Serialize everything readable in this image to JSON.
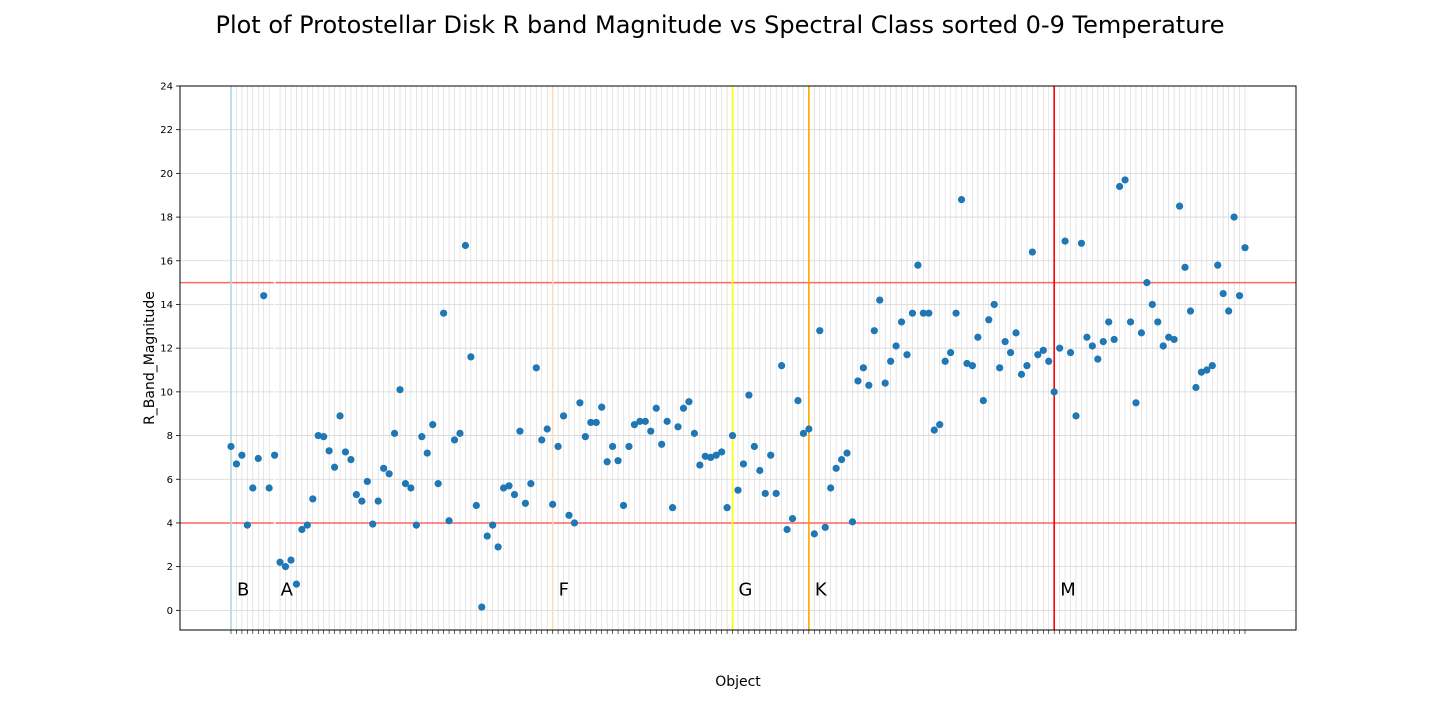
{
  "chart_data": {
    "type": "scatter",
    "title": "Plot of Protostellar Disk R band Magnitude vs Spectral Class sorted 0-9 Temperature",
    "xlabel": "Object",
    "ylabel": "R_Band_Magnitude",
    "ylim": [
      -0.9,
      24
    ],
    "yticks": [
      0,
      2,
      4,
      6,
      8,
      10,
      12,
      14,
      16,
      18,
      20,
      22,
      24
    ],
    "grid": true,
    "point_color": "#1f77b4",
    "reference_lines": [
      {
        "axis": "y",
        "value": 15,
        "color": "#ff6666"
      },
      {
        "axis": "y",
        "value": 4,
        "color": "#ff6666"
      }
    ],
    "class_boundaries": [
      {
        "label": "B",
        "index": 0,
        "color": "#add8e6"
      },
      {
        "label": "A",
        "index": 8,
        "color": "#ffffff"
      },
      {
        "label": "F",
        "index": 59,
        "color": "#ffdab9"
      },
      {
        "label": "G",
        "index": 92,
        "color": "#ffff00"
      },
      {
        "label": "K",
        "index": 106,
        "color": "#ffa500"
      },
      {
        "label": "M",
        "index": 151,
        "color": "#ff0000"
      }
    ],
    "values": [
      7.5,
      6.7,
      7.1,
      3.9,
      5.6,
      6.95,
      14.4,
      5.6,
      7.1,
      2.2,
      2.0,
      2.3,
      1.2,
      3.7,
      3.9,
      5.1,
      8.0,
      7.95,
      7.3,
      6.55,
      8.9,
      7.25,
      6.9,
      5.3,
      5.0,
      5.9,
      3.95,
      5.0,
      6.5,
      6.25,
      8.1,
      10.1,
      5.8,
      5.6,
      3.9,
      7.95,
      7.2,
      8.5,
      5.8,
      13.6,
      4.1,
      7.8,
      8.1,
      16.7,
      11.6,
      4.8,
      0.15,
      3.4,
      3.9,
      2.9,
      5.6,
      5.7,
      5.3,
      8.2,
      4.9,
      5.8,
      11.1,
      7.8,
      8.3,
      4.85,
      7.5,
      8.9,
      4.35,
      4.0,
      9.5,
      7.95,
      8.6,
      8.6,
      9.3,
      6.8,
      7.5,
      6.85,
      4.8,
      7.5,
      8.5,
      8.65,
      8.65,
      8.2,
      9.25,
      7.6,
      8.65,
      4.7,
      8.4,
      9.25,
      9.55,
      8.1,
      6.65,
      7.05,
      7.0,
      7.1,
      7.25,
      4.7,
      8.0,
      5.5,
      6.7,
      9.85,
      7.5,
      6.4,
      5.35,
      7.1,
      5.35,
      11.2,
      3.7,
      4.2,
      9.6,
      8.1,
      8.3,
      3.5,
      12.8,
      3.8,
      5.6,
      6.5,
      6.9,
      7.2,
      4.05,
      10.5,
      11.1,
      10.3,
      12.8,
      14.2,
      10.4,
      11.4,
      12.1,
      13.2,
      11.7,
      13.6,
      15.8,
      13.6,
      13.6,
      8.25,
      8.5,
      11.4,
      11.8,
      13.6,
      18.8,
      11.3,
      11.2,
      12.5,
      9.6,
      13.3,
      14.0,
      11.1,
      12.3,
      11.8,
      12.7,
      10.8,
      11.2,
      16.4,
      11.7,
      11.9,
      11.4,
      10.0,
      12.0,
      16.9,
      11.8,
      8.9,
      16.8,
      12.5,
      12.1,
      11.5,
      12.3,
      13.2,
      12.4,
      19.4,
      19.7,
      13.2,
      9.5,
      12.7,
      15.0,
      14.0,
      13.2,
      12.1,
      12.5,
      12.4,
      18.5,
      15.7,
      13.7,
      10.2,
      10.9,
      11.0,
      11.2,
      15.8,
      14.5,
      13.7,
      18.0,
      14.4,
      16.6
    ]
  }
}
